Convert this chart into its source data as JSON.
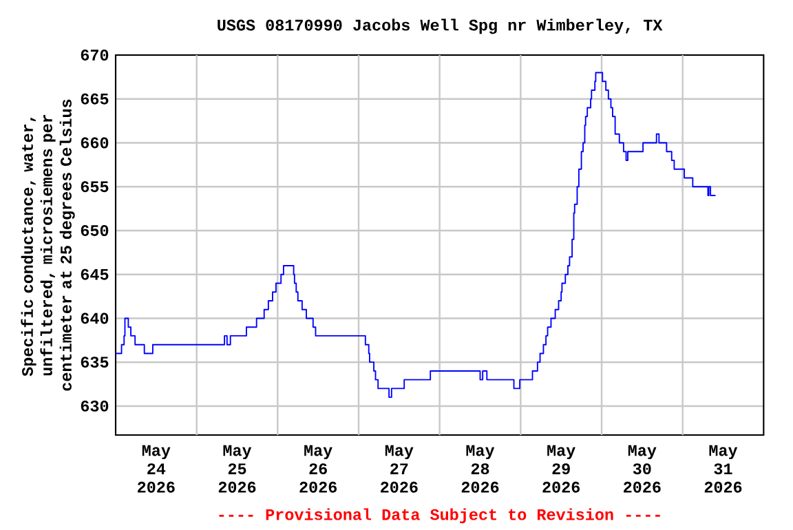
{
  "chart_data": {
    "type": "step",
    "title": "USGS 08170990 Jacobs Well Spg nr Wimberley, TX",
    "ylabel": "Specific conductance, water, unfiltered, microsiemens per centimeter at 25 degrees Celsius",
    "annotations": [
      "---- Provisional Data Subject to Revision ----"
    ],
    "xlim": [
      "2026-05-24T00:00",
      "2026-06-01T00:00"
    ],
    "xticks": [
      {
        "value": "2026-05-24T12:00",
        "label": "May 24 2026"
      },
      {
        "value": "2026-05-25T00:00",
        "label": null
      },
      {
        "value": "2026-05-25T12:00",
        "label": "May 25 2026"
      },
      {
        "value": "2026-05-26T00:00",
        "label": null
      },
      {
        "value": "2026-05-26T12:00",
        "label": "May 26 2026"
      },
      {
        "value": "2026-05-27T00:00",
        "label": null
      },
      {
        "value": "2026-05-27T12:00",
        "label": "May 27 2026"
      },
      {
        "value": "2026-05-28T00:00",
        "label": null
      },
      {
        "value": "2026-05-28T12:00",
        "label": "May 28 2026"
      },
      {
        "value": "2026-05-29T00:00",
        "label": null
      },
      {
        "value": "2026-05-29T12:00",
        "label": "May 29 2026"
      },
      {
        "value": "2026-05-30T00:00",
        "label": null
      },
      {
        "value": "2026-05-30T12:00",
        "label": "May 30 2026"
      },
      {
        "value": "2026-05-31T00:00",
        "label": null
      },
      {
        "value": "2026-05-31T12:00",
        "label": "May 31 2026"
      }
    ],
    "ylim": [
      626.7,
      670
    ],
    "yticks": [
      630,
      635,
      640,
      645,
      650,
      655,
      660,
      665,
      670
    ],
    "grid": true,
    "color": "#0000ff",
    "x": [
      "2026-05-24T00:00",
      "2026-05-24T01:45",
      "2026-05-24T02:30",
      "2026-05-24T02:45",
      "2026-05-24T03:45",
      "2026-05-24T04:30",
      "2026-05-24T05:45",
      "2026-05-24T08:30",
      "2026-05-24T11:00",
      "2026-05-25T08:15",
      "2026-05-25T09:00",
      "2026-05-25T10:00",
      "2026-05-25T14:45",
      "2026-05-25T17:45",
      "2026-05-25T20:00",
      "2026-05-25T21:15",
      "2026-05-25T22:30",
      "2026-05-25T23:30",
      "2026-05-26T01:00",
      "2026-05-26T01:45",
      "2026-05-26T04:45",
      "2026-05-26T05:00",
      "2026-05-26T05:30",
      "2026-05-26T06:00",
      "2026-05-26T07:15",
      "2026-05-26T08:30",
      "2026-05-26T10:30",
      "2026-05-26T11:15",
      "2026-05-27T02:00",
      "2026-05-27T03:00",
      "2026-05-27T03:15",
      "2026-05-27T04:30",
      "2026-05-27T05:00",
      "2026-05-27T05:45",
      "2026-05-27T09:00",
      "2026-05-27T09:45",
      "2026-05-27T13:30",
      "2026-05-27T21:15",
      "2026-05-28T12:00",
      "2026-05-28T12:45",
      "2026-05-28T14:00",
      "2026-05-28T22:00",
      "2026-05-28T23:45",
      "2026-05-29T03:30",
      "2026-05-29T05:00",
      "2026-05-29T05:45",
      "2026-05-29T06:45",
      "2026-05-29T07:30",
      "2026-05-29T08:00",
      "2026-05-29T09:00",
      "2026-05-29T10:15",
      "2026-05-29T11:15",
      "2026-05-29T12:00",
      "2026-05-29T12:15",
      "2026-05-29T13:15",
      "2026-05-29T14:00",
      "2026-05-29T14:30",
      "2026-05-29T15:15",
      "2026-05-29T15:45",
      "2026-05-29T16:00",
      "2026-05-29T16:45",
      "2026-05-29T17:15",
      "2026-05-29T18:00",
      "2026-05-29T18:30",
      "2026-05-29T19:00",
      "2026-05-29T19:15",
      "2026-05-29T19:45",
      "2026-05-29T20:45",
      "2026-05-29T21:00",
      "2026-05-29T22:00",
      "2026-05-29T22:15",
      "2026-05-30T00:15",
      "2026-05-30T01:15",
      "2026-05-30T02:00",
      "2026-05-30T02:45",
      "2026-05-30T03:15",
      "2026-05-30T04:00",
      "2026-05-30T05:15",
      "2026-05-30T06:30",
      "2026-05-30T07:15",
      "2026-05-30T07:45",
      "2026-05-30T12:15",
      "2026-05-30T16:15",
      "2026-05-30T17:00",
      "2026-05-30T19:15",
      "2026-05-30T20:45",
      "2026-05-30T21:30",
      "2026-05-31T00:30",
      "2026-05-31T03:00",
      "2026-05-31T07:30",
      "2026-05-31T07:45",
      "2026-05-31T08:15",
      "2026-05-31T09:45"
    ],
    "values": [
      636,
      637,
      638,
      640,
      639,
      638,
      637,
      636,
      637,
      638,
      637,
      638,
      639,
      640,
      641,
      642,
      643,
      644,
      645,
      646,
      645,
      644,
      643,
      642,
      641,
      640,
      639,
      638,
      637,
      636,
      635,
      634,
      633,
      632,
      631,
      632,
      633,
      634,
      633,
      634,
      633,
      632,
      633,
      634,
      635,
      636,
      637,
      638,
      639,
      640,
      641,
      642,
      643,
      644,
      645,
      646,
      647,
      649,
      652,
      653,
      655,
      657,
      659,
      660,
      662,
      663,
      664,
      665,
      666,
      667,
      668,
      667,
      666,
      665,
      664,
      663,
      661,
      660,
      659,
      658,
      659,
      660,
      661,
      660,
      659,
      658,
      657,
      656,
      655,
      654,
      655,
      654,
      654
    ]
  }
}
